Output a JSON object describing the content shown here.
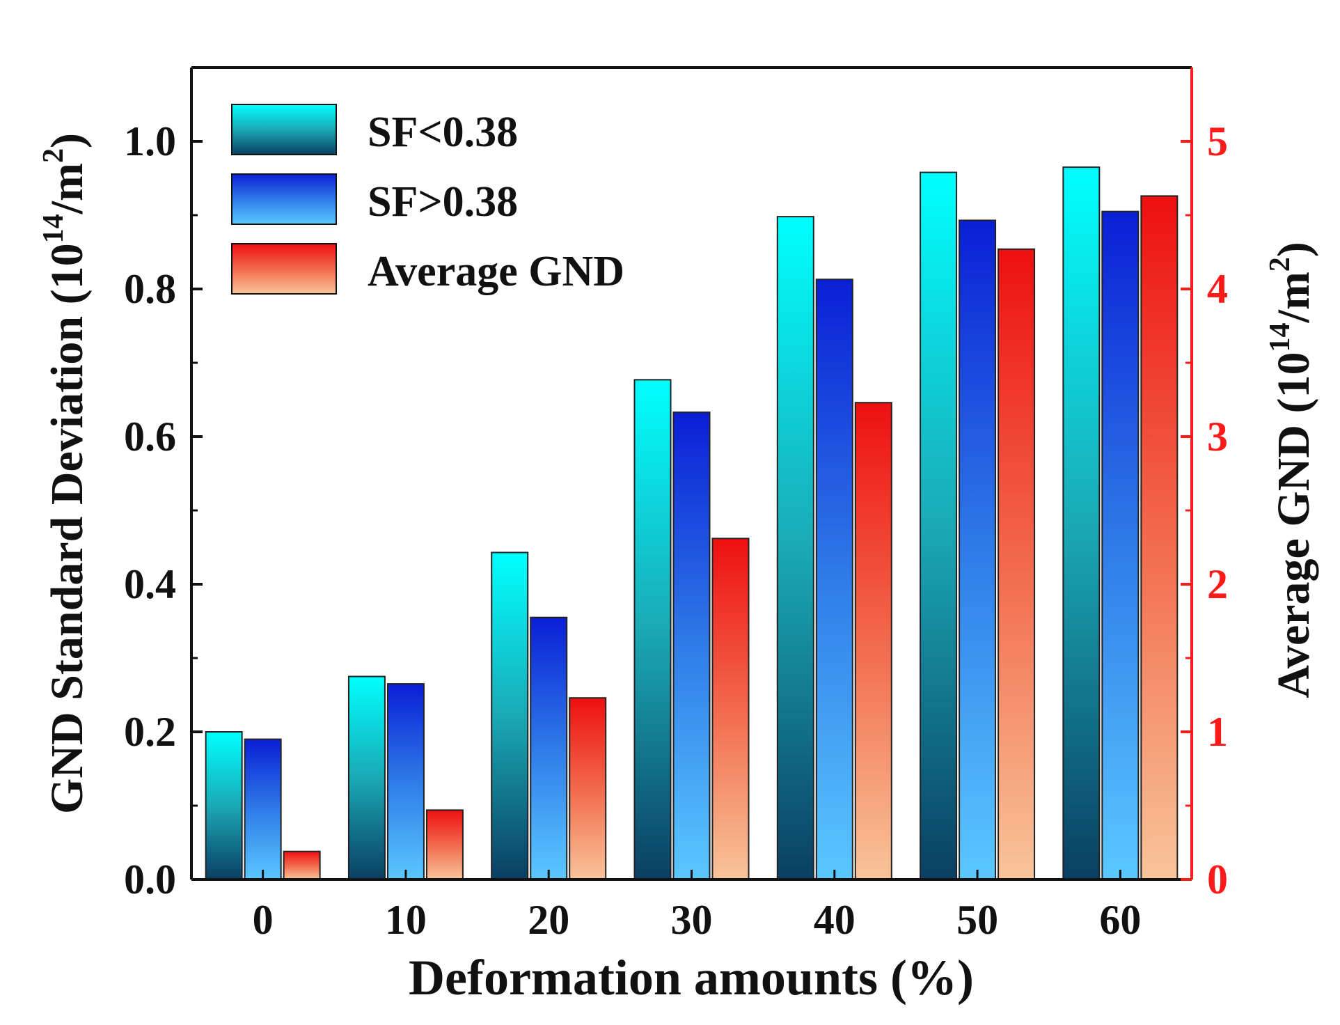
{
  "chart_data": {
    "type": "bar",
    "categories": [
      "0",
      "10",
      "20",
      "30",
      "40",
      "50",
      "60"
    ],
    "xlabel": "Deformation amounts (%)",
    "ylabel_left": {
      "main": "GND Standard Deviation (10",
      "sup1": "14",
      "mid": "/m",
      "sup2": "2",
      "end": ")"
    },
    "ylabel_right": {
      "main": "Average GND (10",
      "sup1": "14",
      "mid": "/m",
      "sup2": "2",
      "end": ")"
    },
    "ylim_left": [
      0,
      1.1
    ],
    "ylim_right": [
      0,
      5.5
    ],
    "yticks_left": [
      "0.0",
      "0.2",
      "0.4",
      "0.6",
      "0.8",
      "1.0"
    ],
    "yticks_right": [
      "0",
      "1",
      "2",
      "3",
      "4",
      "5"
    ],
    "legend_position": "top-left",
    "series": [
      {
        "name": "SF<0.38",
        "axis": "left",
        "values": [
          0.2,
          0.275,
          0.443,
          0.677,
          0.898,
          0.958,
          0.965
        ]
      },
      {
        "name": "SF>0.38",
        "axis": "left",
        "values": [
          0.19,
          0.265,
          0.355,
          0.633,
          0.813,
          0.893,
          0.905
        ]
      },
      {
        "name": "Average GND",
        "axis": "right",
        "values": [
          0.19,
          0.47,
          1.23,
          2.31,
          3.23,
          4.27,
          4.63
        ]
      }
    ],
    "colors": {
      "sf_low_top": "#00ffff",
      "sf_low_mid": "#1aa9b5",
      "sf_low_bottom": "#0a3f63",
      "sf_high_top": "#0a1fd6",
      "sf_high_mid": "#2f7be8",
      "sf_high_bottom": "#5ac8ff",
      "gnd_top": "#ee1010",
      "gnd_mid": "#f2694c",
      "gnd_bottom": "#f8c49a",
      "right_axis": "#ff1a1a",
      "left_axis": "#111111"
    }
  }
}
